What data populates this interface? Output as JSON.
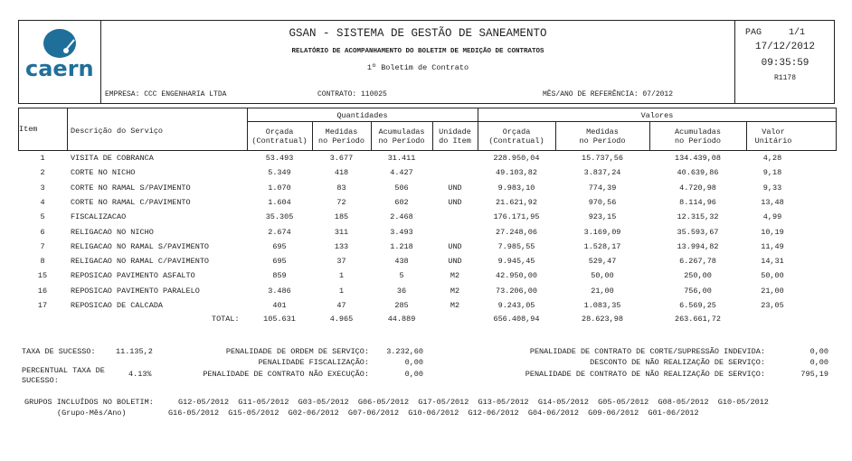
{
  "header": {
    "system_title": "GSAN - SISTEMA DE GESTÃO DE SANEAMENTO",
    "report_title": "RELATÓRIO DE ACOMPANHAMENTO DO BOLETIM DE MEDIÇÃO DE CONTRATOS",
    "subtitle": "1º Boletim de Contrato",
    "empresa": "EMPRESA: CCC ENGENHARIA LTDA",
    "contrato": "CONTRATO: 110025",
    "referencia": "MÊS/ANO DE REFERÊNCIA: 07/2012",
    "logo": "caern",
    "logo_color": "#1f6f9a",
    "page_label": "PAG",
    "page": "1/1",
    "date": "17/12/2012",
    "time": "09:35:59",
    "report_code": "R1178"
  },
  "columns": {
    "item": "Item",
    "descricao": "Descrição do Serviço",
    "quantidades": "Quantidades",
    "valores": "Valores",
    "q_orcada": [
      "Orçada",
      "(Contratual)"
    ],
    "q_medidas": [
      "Medidas",
      "no Período"
    ],
    "q_acumuladas": [
      "Acumuladas",
      "no Período"
    ],
    "unidade": [
      "Unidade",
      "do Item"
    ],
    "v_orcada": [
      "Orçada",
      "(Contratual)"
    ],
    "v_medidas": [
      "Medidas",
      "no Período"
    ],
    "v_acumuladas": [
      "Acumuladas",
      "no Período"
    ],
    "valor_unitario": [
      "Valor",
      "Unitário"
    ]
  },
  "rows": [
    [
      "1",
      "VISITA DE COBRANCA",
      "53.493",
      "3.677",
      "31.411",
      "",
      "228.950,04",
      "15.737,56",
      "134.439,08",
      "4,28"
    ],
    [
      "2",
      "CORTE NO NICHO",
      "5.349",
      "418",
      "4.427",
      "",
      "49.103,82",
      "3.837,24",
      "40.639,86",
      "9,18"
    ],
    [
      "3",
      "CORTE NO RAMAL S/PAVIMENTO",
      "1.070",
      "83",
      "506",
      "UND",
      "9.983,10",
      "774,39",
      "4.720,98",
      "9,33"
    ],
    [
      "4",
      "CORTE NO RAMAL C/PAVIMENTO",
      "1.604",
      "72",
      "602",
      "UND",
      "21.621,92",
      "970,56",
      "8.114,96",
      "13,48"
    ],
    [
      "5",
      "FISCALIZACAO",
      "35.305",
      "185",
      "2.468",
      "",
      "176.171,95",
      "923,15",
      "12.315,32",
      "4,99"
    ],
    [
      "6",
      "RELIGACAO NO NICHO",
      "2.674",
      "311",
      "3.493",
      "",
      "27.248,06",
      "3.169,09",
      "35.593,67",
      "10,19"
    ],
    [
      "7",
      "RELIGACAO NO RAMAL S/PAVIMENTO",
      "695",
      "133",
      "1.218",
      "UND",
      "7.985,55",
      "1.528,17",
      "13.994,82",
      "11,49"
    ],
    [
      "8",
      "RELIGACAO NO RAMAL C/PAVIMENTO",
      "695",
      "37",
      "438",
      "UND",
      "9.945,45",
      "529,47",
      "6.267,78",
      "14,31"
    ],
    [
      "15",
      "REPOSICAO PAVIMENTO ASFALTO",
      "859",
      "1",
      "5",
      "M2",
      "42.950,00",
      "50,00",
      "250,00",
      "50,00"
    ],
    [
      "16",
      "REPOSICAO PAVIMENTO PARALELO",
      "3.486",
      "1",
      "36",
      "M2",
      "73.206,00",
      "21,00",
      "756,00",
      "21,00"
    ],
    [
      "17",
      "REPOSICAO DE CALCADA",
      "401",
      "47",
      "285",
      "M2",
      "9.243,05",
      "1.083,35",
      "6.569,25",
      "23,05"
    ]
  ],
  "total": {
    "label": "TOTAL:",
    "q_orcada": "105.631",
    "q_medidas": "4.965",
    "q_acumuladas": "44.889",
    "v_orcada": "656.408,94",
    "v_medidas": "28.623,98",
    "v_acumuladas": "263.661,72"
  },
  "summary": {
    "taxa_sucesso_label": "TAXA DE SUCESSO:",
    "taxa_sucesso": "11.135,2",
    "percentual_label_1": "PERCENTUAL TAXA DE",
    "percentual_label_2": "SUCESSO:",
    "percentual": "4.13%",
    "pen_os_label": "PENALIDADE DE ORDEM DE SERVIÇO:",
    "pen_os": "3.232,60",
    "pen_fisc_label": "PENALIDADE FISCALIZAÇÃO:",
    "pen_fisc": "0,00",
    "pen_nao_exec_label": "PENALIDADE DE CONTRATO NÃO EXECUÇÃO:",
    "pen_nao_exec": "0,00",
    "pen_corte_label": "PENALIDADE DE CONTRATO DE CORTE/SUPRESSÃO INDEVIDA:",
    "pen_corte": "0,00",
    "desconto_label": "DESCONTO DE NÃO REALIZAÇÃO DE SERVIÇO:",
    "desconto": "0,00",
    "pen_nao_real_label": "PENALIDADE DE CONTRATO DE NÃO REALIZAÇÃO DE SERVIÇO:",
    "pen_nao_real": "795,19"
  },
  "grupos": {
    "label": "GRUPOS INCLUÍDOS NO BOLETIM:",
    "sublabel": "(Grupo-Mês/Ano)",
    "line1": "G12-05/2012  G11-05/2012  G03-05/2012  G06-05/2012  G17-05/2012  G13-05/2012  G14-05/2012  G05-05/2012  G08-05/2012  G10-05/2012",
    "line2": "G16-05/2012  G15-05/2012  G02-06/2012  G07-06/2012  G10-06/2012  G12-06/2012  G04-06/2012  G09-06/2012  G01-06/2012"
  }
}
